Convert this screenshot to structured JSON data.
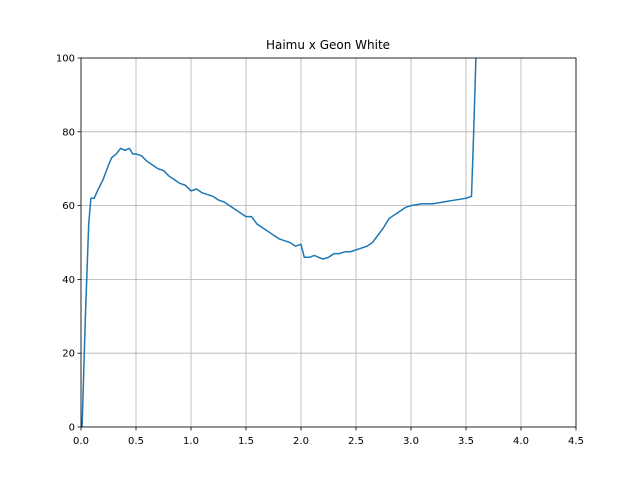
{
  "chart_data": {
    "type": "line",
    "title": "Haimu x Geon White",
    "x": [
      0.01,
      0.04,
      0.07,
      0.09,
      0.12,
      0.15,
      0.2,
      0.25,
      0.28,
      0.32,
      0.36,
      0.4,
      0.44,
      0.47,
      0.5,
      0.55,
      0.6,
      0.65,
      0.7,
      0.75,
      0.8,
      0.85,
      0.9,
      0.95,
      1.0,
      1.05,
      1.1,
      1.15,
      1.2,
      1.25,
      1.3,
      1.35,
      1.4,
      1.45,
      1.5,
      1.55,
      1.6,
      1.65,
      1.7,
      1.75,
      1.8,
      1.85,
      1.9,
      1.95,
      2.0,
      2.03,
      2.08,
      2.12,
      2.16,
      2.2,
      2.25,
      2.3,
      2.35,
      2.4,
      2.45,
      2.5,
      2.55,
      2.6,
      2.65,
      2.7,
      2.75,
      2.8,
      2.85,
      2.9,
      2.95,
      3.0,
      3.1,
      3.2,
      3.3,
      3.4,
      3.5,
      3.55,
      3.57,
      3.59
    ],
    "series": [
      {
        "color": "#1f77b4",
        "values": [
          0,
          30,
          55,
          62,
          62,
          64,
          67,
          71,
          73,
          74,
          75.5,
          75,
          75.5,
          74,
          74,
          73.5,
          72,
          71,
          70,
          69.5,
          68,
          67,
          66,
          65.5,
          64,
          64.5,
          63.5,
          63,
          62.5,
          61.5,
          61,
          60,
          59,
          58,
          57,
          57,
          55,
          54,
          53,
          52,
          51,
          50.5,
          50,
          49,
          49.5,
          46,
          46,
          46.5,
          46,
          45.5,
          46,
          47,
          47,
          47.5,
          47.5,
          48,
          48.5,
          49,
          50,
          52,
          54,
          56.5,
          57.5,
          58.5,
          59.5,
          60,
          60.5,
          60.5,
          61,
          61.5,
          62,
          62.5,
          80,
          100
        ]
      }
    ],
    "xlim": [
      0,
      4.5
    ],
    "ylim": [
      0,
      100
    ],
    "xticks": [
      {
        "value": 0,
        "label": "0.0"
      },
      0.5,
      {
        "value": 1,
        "label": "1.0"
      },
      1.5,
      {
        "value": 2,
        "label": "2.0"
      },
      2.5,
      {
        "value": 3,
        "label": "3.0"
      },
      3.5,
      {
        "value": 4,
        "label": "4.0"
      },
      4.5
    ],
    "yticks": [
      0,
      20,
      40,
      60,
      80,
      100
    ],
    "grid": true
  }
}
